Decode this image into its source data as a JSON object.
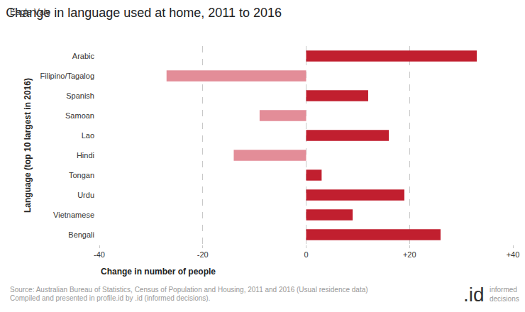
{
  "chart_data": {
    "type": "bar",
    "orientation": "horizontal",
    "title": "Change in language used at home, 2011 to 2016",
    "subtitle": "Eagle Vale",
    "x_label": "Change in number of people",
    "y_label": "Language (top 10 largest in 2016)",
    "categories": [
      "Arabic",
      "Filipino/Tagalog",
      "Spanish",
      "Samoan",
      "Lao",
      "Hindi",
      "Tongan",
      "Urdu",
      "Vietnamese",
      "Bengali"
    ],
    "values": [
      33,
      -27,
      12,
      -9,
      16,
      -14,
      3,
      19,
      9,
      26
    ],
    "colors": [
      "#c11f2f",
      "#e38d98",
      "#c11f2f",
      "#e38d98",
      "#c11f2f",
      "#e38d98",
      "#c11f2f",
      "#c11f2f",
      "#c11f2f",
      "#c11f2f"
    ],
    "xlim": [
      -40,
      40
    ],
    "xticks": [
      -40,
      -20,
      0,
      {
        "value": 20,
        "label": "+20"
      },
      {
        "value": 40,
        "label": "+40"
      }
    ],
    "grid": true,
    "annotations": [
      "Source: Australian Bureau of Statistics, Census of Population and Housing, 2011 and 2016 (Usual residence data)",
      "Compiled and presented in profile.id by .id (informed decisions).",
      ".id",
      "informed decisions"
    ]
  }
}
